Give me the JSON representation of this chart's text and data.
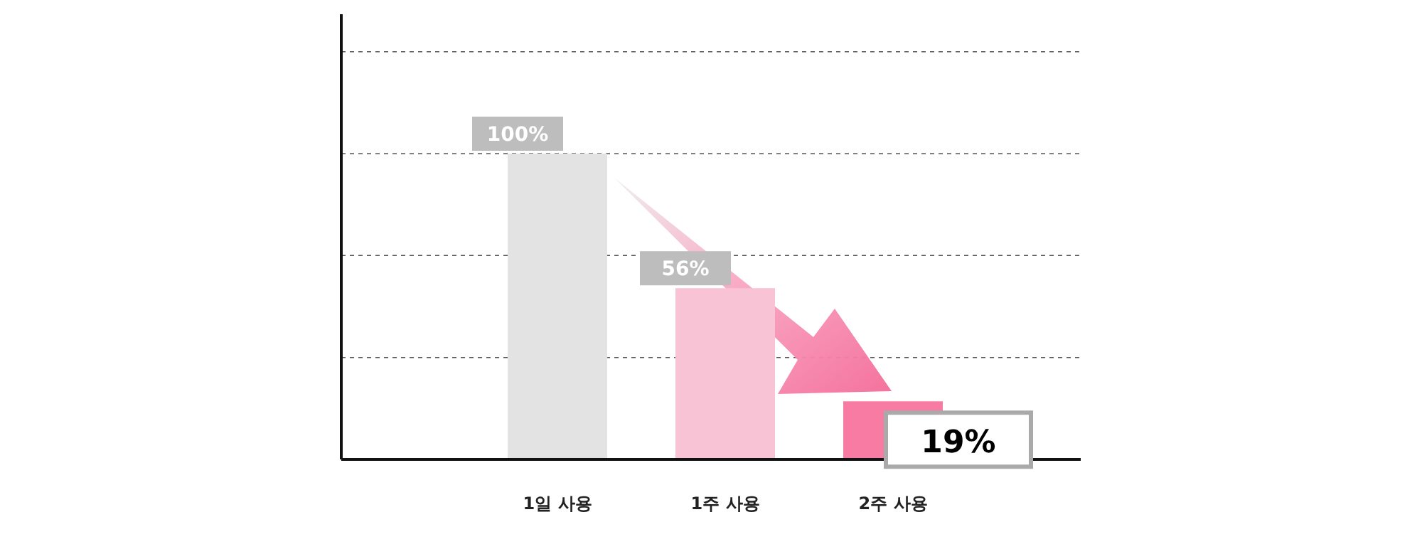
{
  "chart_data": {
    "type": "bar",
    "categories": [
      "1일 사용",
      "1주 사용",
      "2주 사용"
    ],
    "values": [
      100,
      56,
      19
    ],
    "colors": [
      "#e3e3e3",
      "#f9c3d6",
      "#f77ba2"
    ],
    "value_labels": [
      "100%",
      "56%",
      "19%"
    ],
    "tick_labels": "x",
    "ref_lines": [
      {
        "axis": "y",
        "value": 33.3,
        "color": "#555555",
        "line_style": "dashed"
      },
      {
        "axis": "y",
        "value": 66.7,
        "color": "#555555",
        "line_style": "dashed"
      },
      {
        "axis": "y",
        "value": 100,
        "color": "#555555",
        "line_style": "dashed"
      },
      {
        "axis": "y",
        "value": 133.3,
        "color": "#555555",
        "line_style": "dashed"
      }
    ]
  }
}
